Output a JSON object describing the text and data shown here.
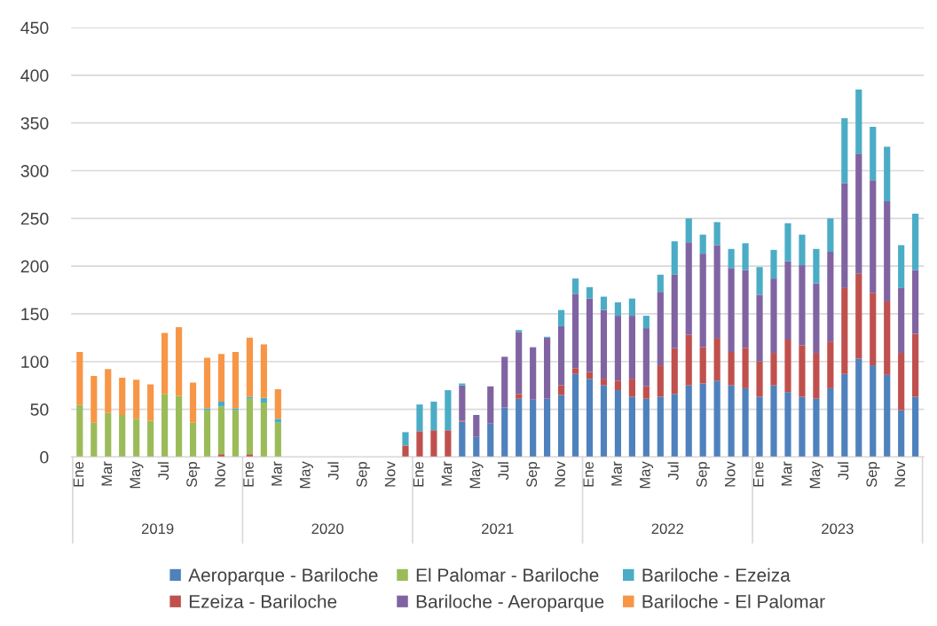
{
  "chart_data": {
    "type": "bar",
    "stacked": true,
    "categories": [
      "Ene",
      null,
      "Mar",
      null,
      "May",
      null,
      "Jul",
      null,
      "Sep",
      null,
      "Nov",
      null,
      "Ene",
      null,
      "Mar",
      null,
      "May",
      null,
      "Jul",
      null,
      "Sep",
      null,
      "Nov",
      null,
      "Ene",
      null,
      "Mar",
      null,
      "May",
      null,
      "Jul",
      null,
      "Sep",
      null,
      "Nov",
      null,
      "Ene",
      null,
      "Mar",
      null,
      "May",
      null,
      "Jul",
      null,
      "Sep",
      null,
      "Nov",
      null,
      "Ene",
      null,
      "Mar",
      null,
      "May",
      null,
      "Jul",
      null,
      "Sep",
      null,
      "Nov",
      null
    ],
    "annotations": [
      "2019",
      "2020",
      "2021",
      "2022",
      "2023"
    ],
    "series": [
      {
        "name": "Aeroparque - Bariloche",
        "color": "#4f81bd",
        "values": [
          null,
          null,
          null,
          null,
          null,
          null,
          null,
          null,
          null,
          null,
          null,
          null,
          null,
          null,
          null,
          null,
          null,
          null,
          null,
          null,
          null,
          null,
          null,
          null,
          null,
          null,
          null,
          37,
          21,
          35,
          52,
          61,
          60,
          61,
          65,
          87,
          82,
          75,
          70,
          63,
          61,
          63,
          66,
          75,
          77,
          80,
          75,
          72,
          63,
          75,
          68,
          63,
          61,
          72,
          87,
          103,
          96,
          86,
          49,
          63
        ]
      },
      {
        "name": "Ezeiza - Bariloche",
        "color": "#c0504d",
        "values": [
          null,
          null,
          null,
          null,
          null,
          null,
          null,
          null,
          null,
          null,
          3,
          null,
          3,
          null,
          null,
          null,
          null,
          null,
          null,
          null,
          null,
          null,
          null,
          12,
          27,
          28,
          28,
          1,
          null,
          null,
          null,
          5,
          null,
          null,
          10,
          6,
          7,
          7,
          10,
          19,
          13,
          33,
          48,
          53,
          38,
          44,
          35,
          42,
          37,
          34,
          55,
          54,
          48,
          49,
          90,
          89,
          76,
          77,
          60,
          66
        ]
      },
      {
        "name": "El Palomar - Bariloche",
        "color": "#9bbb59",
        "values": [
          55,
          36,
          46,
          44,
          40,
          38,
          66,
          64,
          36,
          49,
          50,
          49,
          58,
          57,
          36,
          null,
          null,
          null,
          null,
          null,
          null,
          null,
          null,
          null,
          null,
          null,
          null,
          null,
          null,
          null,
          null,
          null,
          null,
          null,
          null,
          null,
          null,
          null,
          null,
          null,
          null,
          null,
          null,
          null,
          null,
          null,
          null,
          null,
          null,
          null,
          null,
          null,
          null,
          null,
          null,
          null,
          null,
          null,
          null,
          null
        ]
      },
      {
        "name": "Bariloche - Aeroparque",
        "color": "#8064a2",
        "values": [
          null,
          null,
          null,
          null,
          null,
          null,
          null,
          null,
          null,
          null,
          null,
          null,
          null,
          null,
          null,
          null,
          null,
          null,
          null,
          null,
          null,
          null,
          null,
          null,
          null,
          null,
          null,
          37,
          23,
          39,
          53,
          65,
          55,
          64,
          62,
          78,
          77,
          72,
          68,
          66,
          61,
          77,
          77,
          97,
          98,
          98,
          88,
          82,
          70,
          78,
          82,
          84,
          73,
          94,
          110,
          126,
          118,
          105,
          68,
          67
        ]
      },
      {
        "name": "Bariloche - Ezeiza",
        "color": "#4bacc6",
        "values": [
          null,
          null,
          null,
          null,
          null,
          null,
          null,
          null,
          null,
          2,
          5,
          2,
          2,
          5,
          4,
          null,
          null,
          null,
          null,
          null,
          null,
          null,
          null,
          14,
          28,
          30,
          42,
          2,
          null,
          null,
          null,
          2,
          null,
          1,
          17,
          16,
          12,
          14,
          14,
          18,
          13,
          18,
          35,
          25,
          20,
          24,
          20,
          28,
          29,
          30,
          40,
          32,
          36,
          35,
          68,
          67,
          56,
          57,
          45,
          59
        ]
      },
      {
        "name": "Bariloche - El Palomar",
        "color": "#f79646",
        "values": [
          55,
          49,
          46,
          39,
          41,
          38,
          64,
          72,
          42,
          53,
          50,
          59,
          62,
          56,
          31,
          null,
          null,
          null,
          null,
          null,
          null,
          null,
          null,
          null,
          null,
          null,
          null,
          null,
          null,
          null,
          null,
          null,
          null,
          null,
          null,
          null,
          null,
          null,
          null,
          null,
          null,
          null,
          null,
          null,
          null,
          null,
          null,
          null,
          null,
          null,
          null,
          null,
          null,
          null,
          null,
          null,
          null,
          null,
          null,
          null
        ]
      }
    ],
    "ylim": [
      0,
      450
    ],
    "yticks": [
      0,
      50,
      100,
      150,
      200,
      250,
      300,
      350,
      400,
      450
    ],
    "grid": "y",
    "legend": "bottom"
  }
}
